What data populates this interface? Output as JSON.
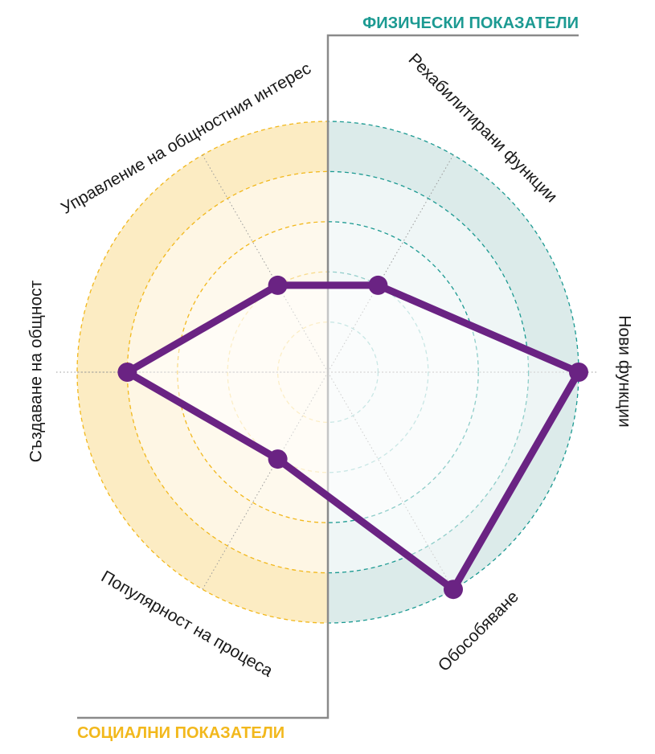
{
  "sections": {
    "physical": {
      "label": "ФИЗИЧЕСКИ ПОКАЗАТЕЛИ",
      "color": "#1c9a92"
    },
    "social": {
      "label": "СОЦИАЛНИ ПОКАЗАТЕЛИ",
      "color": "#f2b81c"
    }
  },
  "chart_data": {
    "type": "radar",
    "axes": [
      "Рехабилитирани функции",
      "Нови функции",
      "Обособяване",
      "Популярност на процеса",
      "Създаване на общност",
      "Управление на общностния интерес"
    ],
    "scale": {
      "min": 0,
      "max": 5,
      "rings": 5
    },
    "series": [
      {
        "values": [
          2,
          5,
          5,
          2,
          4,
          2
        ],
        "color": "#6a2383"
      }
    ],
    "colors": {
      "physical_fill": "#dcebea",
      "physical_ring": "#1c9a92",
      "social_fill": "#fcecc3",
      "social_ring": "#f2b81c",
      "divider": "#8a8a8a",
      "spoke": "#9a9a9a"
    }
  }
}
